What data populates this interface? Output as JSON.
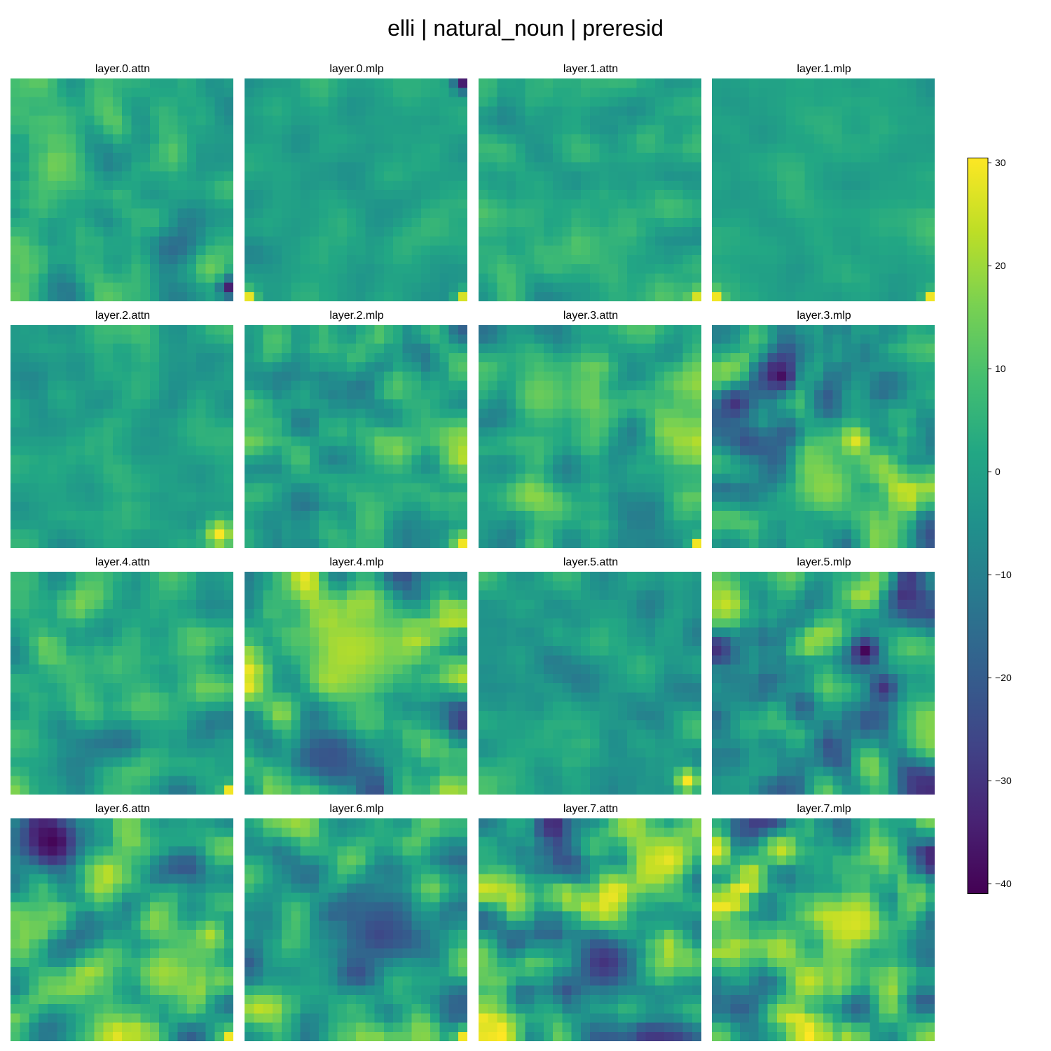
{
  "figure": {
    "title": "elli | natural_noun | preresid"
  },
  "chart_data": {
    "type": "heatmap",
    "colormap": "viridis",
    "grid_size": [
      24,
      24
    ],
    "vmin": -41,
    "vmax": 30.5,
    "panels": [
      {
        "title": "layer.0.attn",
        "mean": 2,
        "std": 5.5,
        "seed": 11,
        "hotspots": [
          {
            "r": 22,
            "c": 23,
            "v": -38,
            "s": 0.8
          },
          {
            "r": 20,
            "c": 21,
            "v": 14,
            "s": 1.2
          }
        ]
      },
      {
        "title": "layer.0.mlp",
        "mean": 0,
        "std": 2.5,
        "seed": 23,
        "hotspots": [
          {
            "r": 0,
            "c": 23,
            "v": -35,
            "s": 0.7
          },
          {
            "r": 23,
            "c": 0,
            "v": 28,
            "s": 0.6
          },
          {
            "r": 23,
            "c": 23,
            "v": 26,
            "s": 0.6
          }
        ]
      },
      {
        "title": "layer.1.attn",
        "mean": 2,
        "std": 3.5,
        "seed": 37,
        "hotspots": [
          {
            "r": 23,
            "c": 23,
            "v": 26,
            "s": 0.7
          }
        ]
      },
      {
        "title": "layer.1.mlp",
        "mean": 1,
        "std": 2.0,
        "seed": 41,
        "hotspots": [
          {
            "r": 23,
            "c": 0,
            "v": 29,
            "s": 0.6
          },
          {
            "r": 23,
            "c": 23,
            "v": 29,
            "s": 0.5
          }
        ]
      },
      {
        "title": "layer.2.attn",
        "mean": 0,
        "std": 3.0,
        "seed": 53,
        "hotspots": [
          {
            "r": 22,
            "c": 22,
            "v": 30,
            "s": 1.1
          }
        ]
      },
      {
        "title": "layer.2.mlp",
        "mean": 1,
        "std": 6.0,
        "seed": 67,
        "hotspots": [
          {
            "r": 23,
            "c": 23,
            "v": 29,
            "s": 0.6
          }
        ]
      },
      {
        "title": "layer.3.attn",
        "mean": 2,
        "std": 7.0,
        "seed": 71,
        "hotspots": [
          {
            "r": 23,
            "c": 23,
            "v": 29,
            "s": 0.5
          },
          {
            "r": 7,
            "c": 6,
            "v": 14,
            "s": 2.5
          }
        ]
      },
      {
        "title": "layer.3.mlp",
        "mean": -2,
        "std": 9.0,
        "seed": 83,
        "hotspots": [
          {
            "r": 5,
            "c": 7,
            "v": -38,
            "s": 1.4
          },
          {
            "r": 12,
            "c": 15,
            "v": 28,
            "s": 1.3
          },
          {
            "r": 17,
            "c": 12,
            "v": 18,
            "s": 2.6
          },
          {
            "r": 8,
            "c": 2,
            "v": -30,
            "s": 1.2
          }
        ]
      },
      {
        "title": "layer.4.attn",
        "mean": 2,
        "std": 5.5,
        "seed": 97,
        "hotspots": [
          {
            "r": 23,
            "c": 23,
            "v": 29,
            "s": 0.5
          }
        ]
      },
      {
        "title": "layer.4.mlp",
        "mean": 2,
        "std": 10.0,
        "seed": 101,
        "hotspots": [
          {
            "r": 8,
            "c": 11,
            "v": 22,
            "s": 4.5
          },
          {
            "r": 19,
            "c": 9,
            "v": -22,
            "s": 2.5
          }
        ]
      },
      {
        "title": "layer.5.attn",
        "mean": -2,
        "std": 4.0,
        "seed": 113,
        "hotspots": [
          {
            "r": 22,
            "c": 22,
            "v": 30,
            "s": 1.1
          }
        ]
      },
      {
        "title": "layer.5.mlp",
        "mean": -3,
        "std": 10.0,
        "seed": 127,
        "hotspots": [
          {
            "r": 3,
            "c": 1,
            "v": 24,
            "s": 1.6
          },
          {
            "r": 8,
            "c": 16,
            "v": -40,
            "s": 1.3
          },
          {
            "r": 12,
            "c": 18,
            "v": -30,
            "s": 1.2
          }
        ]
      },
      {
        "title": "layer.6.attn",
        "mean": 4,
        "std": 9.0,
        "seed": 131,
        "hotspots": [
          {
            "r": 2,
            "c": 4,
            "v": -40,
            "s": 2.6
          },
          {
            "r": 12,
            "c": 21,
            "v": 22,
            "s": 1.4
          },
          {
            "r": 16,
            "c": 16,
            "v": 20,
            "s": 2.0
          },
          {
            "r": 23,
            "c": 23,
            "v": 29,
            "s": 0.5
          }
        ]
      },
      {
        "title": "layer.6.mlp",
        "mean": 0,
        "std": 8.0,
        "seed": 149,
        "hotspots": [
          {
            "r": 23,
            "c": 23,
            "v": 29,
            "s": 0.8
          },
          {
            "r": 12,
            "c": 14,
            "v": -25,
            "s": 3.0
          }
        ]
      },
      {
        "title": "layer.7.attn",
        "mean": 2,
        "std": 12.0,
        "seed": 151,
        "hotspots": [
          {
            "r": 4,
            "c": 20,
            "v": 28,
            "s": 2.3
          },
          {
            "r": 15,
            "c": 13,
            "v": -30,
            "s": 2.5
          }
        ]
      },
      {
        "title": "layer.7.mlp",
        "mean": 3,
        "std": 11.0,
        "seed": 163,
        "hotspots": [
          {
            "r": 11,
            "c": 15,
            "v": 26,
            "s": 2.5
          },
          {
            "r": 17,
            "c": 10,
            "v": 24,
            "s": 1.5
          },
          {
            "r": 3,
            "c": 7,
            "v": 24,
            "s": 1.3
          }
        ]
      }
    ],
    "colorbar": {
      "ticks": [
        30,
        20,
        10,
        0,
        -10,
        -20,
        -30,
        -40
      ],
      "tick_labels": [
        "30",
        "20",
        "10",
        "0",
        "−10",
        "−20",
        "−30",
        "−40"
      ]
    }
  }
}
